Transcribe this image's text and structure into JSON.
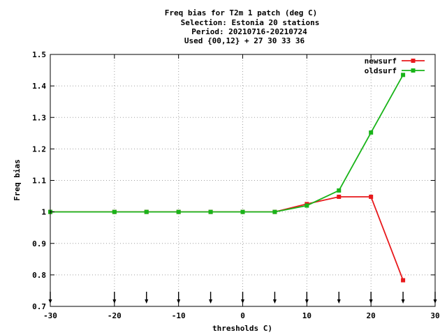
{
  "chart_data": {
    "type": "line",
    "title_lines": [
      "Freq bias  for T2m 1 patch (deg C)",
      "Selection: Estonia     20 stations",
      "Period: 20210716-20210724",
      "Used {00,12} + 27 30 33 36"
    ],
    "xlabel": "thresholds C)",
    "ylabel": "Freq bias",
    "xlim": [
      -30,
      30
    ],
    "ylim": [
      0.7,
      1.5
    ],
    "x_ticks": [
      -30,
      -20,
      -10,
      0,
      10,
      20,
      30
    ],
    "x_tick_labels": [
      "-30",
      "-20",
      "-10",
      "0",
      "10",
      "20",
      "30"
    ],
    "y_ticks": [
      0.7,
      0.8,
      0.9,
      1.0,
      1.1,
      1.2,
      1.3,
      1.4,
      1.5
    ],
    "y_tick_labels": [
      "0.7",
      "0.8",
      "0.9",
      "1",
      "1.1",
      "1.2",
      "1.3",
      "1.4",
      "1.5"
    ],
    "grid": true,
    "legend_position": "top-right",
    "threshold_arrows_x": [
      -30,
      -20,
      -15,
      -10,
      -5,
      0,
      5,
      10,
      15,
      20,
      25,
      30
    ],
    "series": [
      {
        "name": "newsurf",
        "color": "#e8191c",
        "x": [
          -30,
          -20,
          -15,
          -10,
          -5,
          0,
          5,
          10,
          15,
          20,
          25
        ],
        "values": [
          1.0,
          1.0,
          1.0,
          1.0,
          1.0,
          1.0,
          1.0,
          1.025,
          1.048,
          1.048,
          0.783
        ]
      },
      {
        "name": "oldsurf",
        "color": "#19b419",
        "x": [
          -30,
          -20,
          -15,
          -10,
          -5,
          0,
          5,
          10,
          15,
          20,
          25
        ],
        "values": [
          1.0,
          1.0,
          1.0,
          1.0,
          1.0,
          1.0,
          1.0,
          1.02,
          1.068,
          1.252,
          1.435
        ]
      }
    ]
  }
}
